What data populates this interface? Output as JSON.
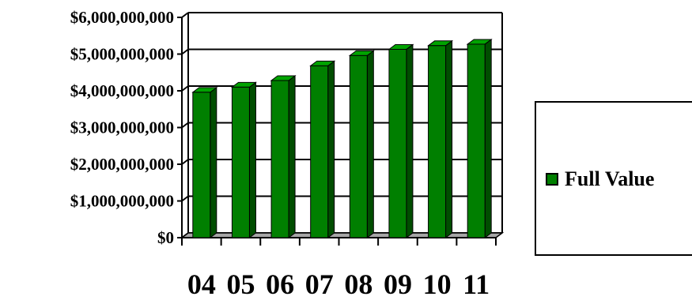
{
  "chart_data": {
    "type": "bar",
    "categories": [
      "04",
      "05",
      "06",
      "07",
      "08",
      "09",
      "10",
      "11"
    ],
    "series": [
      {
        "name": "Full Value",
        "values": [
          3960000000,
          4100000000,
          4280000000,
          4680000000,
          4960000000,
          5130000000,
          5230000000,
          5270000000
        ]
      }
    ],
    "y_ticks": [
      "$0",
      "$1,000,000,000",
      "$2,000,000,000",
      "$3,000,000,000",
      "$4,000,000,000",
      "$5,000,000,000",
      "$6,000,000,000"
    ],
    "ylim": [
      0,
      6000000000
    ],
    "grid": true,
    "legend_position": "right",
    "colors": {
      "bar_front": "#007f00",
      "bar_side": "#004d00",
      "bar_top": "#00a300",
      "floor": "#a6a6a6"
    }
  },
  "legend": {
    "label": "Full Value"
  }
}
